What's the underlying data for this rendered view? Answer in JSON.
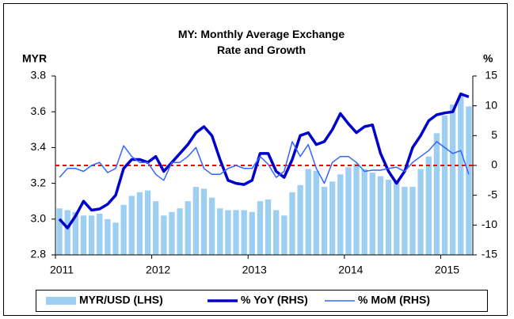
{
  "chart_data": {
    "type": "bar_line_combo",
    "title": "MY: Monthly Average Exchange Rate and Growth",
    "y_label": "MYR",
    "y2_label": "%",
    "categories": [
      "2011",
      null,
      null,
      null,
      null,
      null,
      null,
      null,
      null,
      null,
      null,
      null,
      "2012",
      null,
      null,
      null,
      null,
      null,
      null,
      null,
      null,
      null,
      null,
      null,
      "2013",
      null,
      null,
      null,
      null,
      null,
      null,
      null,
      null,
      null,
      null,
      null,
      "2014",
      null,
      null,
      null,
      null,
      null,
      null,
      null,
      null,
      null,
      null,
      null,
      "2015",
      null,
      null,
      null
    ],
    "series": [
      {
        "name": "MYR/USD (LHS)",
        "kind": "bar",
        "color": "#9dcff2",
        "values": [
          3.06,
          3.05,
          3.04,
          3.02,
          3.02,
          3.03,
          3.0,
          2.98,
          3.08,
          3.13,
          3.15,
          3.16,
          3.1,
          3.02,
          3.04,
          3.06,
          3.1,
          3.18,
          3.17,
          3.12,
          3.06,
          3.05,
          3.05,
          3.05,
          3.04,
          3.1,
          3.11,
          3.05,
          3.02,
          3.15,
          3.19,
          3.28,
          3.27,
          3.18,
          3.21,
          3.25,
          3.29,
          3.31,
          3.28,
          3.26,
          3.24,
          3.22,
          3.21,
          3.18,
          3.18,
          3.28,
          3.35,
          3.48,
          3.58,
          3.64,
          3.69,
          3.63
        ]
      },
      {
        "name": "% YoY (RHS)",
        "kind": "line",
        "axis": "y2",
        "color": "#0000cc",
        "width": 3.5,
        "values": [
          -9,
          -10.5,
          -8.5,
          -6,
          -7.5,
          -7.3,
          -6.5,
          -5,
          -0.5,
          1,
          1,
          0.5,
          1.5,
          -1,
          0.5,
          2,
          3.5,
          5.5,
          6.5,
          5,
          1,
          -2.5,
          -3,
          -3.2,
          -2.5,
          2,
          2,
          -1,
          -2,
          1,
          5,
          5.5,
          3.5,
          4,
          6,
          8.7,
          7,
          5.5,
          6.5,
          6.8,
          2,
          -1,
          -3,
          -1,
          3,
          5,
          7.5,
          8.5,
          8.8,
          9,
          12,
          11.5
        ]
      },
      {
        "name": "% MoM (RHS)",
        "kind": "line",
        "axis": "y2",
        "color": "#3366ff",
        "width": 1.5,
        "values": [
          -2,
          -0.5,
          -0.5,
          -1,
          0,
          0.5,
          -1.2,
          -0.5,
          3.3,
          1.5,
          0.5,
          0.5,
          -1.5,
          -2.5,
          0.5,
          0.5,
          1.5,
          3,
          -0.5,
          -1.5,
          -1.5,
          -0.5,
          0,
          -0.5,
          -0.5,
          1.5,
          0.2,
          -2,
          -1,
          4,
          1.5,
          3.5,
          -0.5,
          -3,
          0.5,
          1.5,
          1.5,
          0.5,
          -1,
          -0.8,
          -0.8,
          -0.5,
          -0.3,
          -1,
          0.5,
          1.5,
          2.5,
          4,
          3,
          2,
          2.5,
          -1.5
        ]
      }
    ],
    "ylim": [
      2.8,
      3.8
    ],
    "yticks": [
      2.8,
      {
        "value": 3,
        "label": "3.0"
      },
      3.2,
      3.4,
      3.6,
      3.8
    ],
    "y2lim": [
      -15,
      15
    ],
    "y2ticks": [
      -15,
      -10,
      -5,
      0,
      5,
      10,
      15
    ],
    "ref_line": {
      "value": 0,
      "axis": "y2",
      "color": "#ff0000"
    },
    "legend": "bottom"
  }
}
